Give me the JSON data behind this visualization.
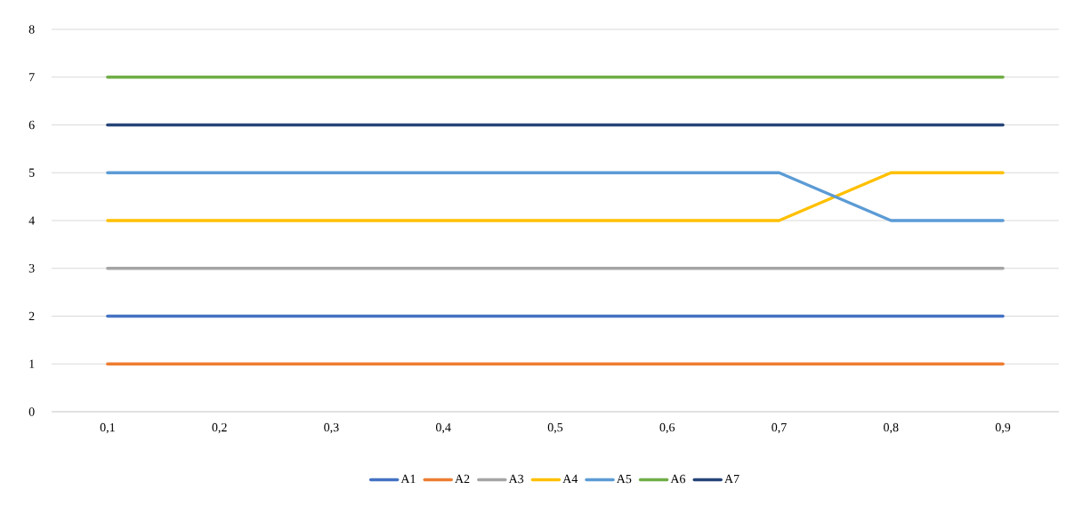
{
  "chart_data": {
    "type": "line",
    "categories": [
      "0,1",
      "0,2",
      "0,3",
      "0,4",
      "0,5",
      "0,6",
      "0,7",
      "0,8",
      "0,9"
    ],
    "series": [
      {
        "name": "A1",
        "color": "#4472c4",
        "values": [
          2,
          2,
          2,
          2,
          2,
          2,
          2,
          2,
          2
        ]
      },
      {
        "name": "A2",
        "color": "#ed7d31",
        "values": [
          1,
          1,
          1,
          1,
          1,
          1,
          1,
          1,
          1
        ]
      },
      {
        "name": "A3",
        "color": "#a5a5a5",
        "values": [
          3,
          3,
          3,
          3,
          3,
          3,
          3,
          3,
          3
        ]
      },
      {
        "name": "A4",
        "color": "#ffc000",
        "values": [
          4,
          4,
          4,
          4,
          4,
          4,
          4,
          5,
          5
        ]
      },
      {
        "name": "A5",
        "color": "#5b9bd5",
        "values": [
          5,
          5,
          5,
          5,
          5,
          5,
          5,
          4,
          4
        ]
      },
      {
        "name": "A6",
        "color": "#70ad47",
        "values": [
          7,
          7,
          7,
          7,
          7,
          7,
          7,
          7,
          7
        ]
      },
      {
        "name": "A7",
        "color": "#264478",
        "values": [
          6,
          6,
          6,
          6,
          6,
          6,
          6,
          6,
          6
        ]
      }
    ],
    "ylim": [
      0,
      8
    ],
    "yticks": [
      0,
      1,
      2,
      3,
      4,
      5,
      6,
      7,
      8
    ],
    "grid": "y",
    "legend": "bottom",
    "marker": "none",
    "line_style": "solid"
  }
}
